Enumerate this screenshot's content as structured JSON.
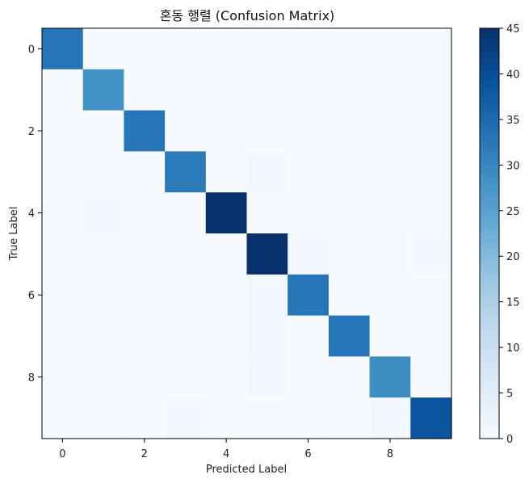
{
  "chart_data": {
    "type": "heatmap",
    "title": "혼동 행렬 (Confusion Matrix)",
    "xlabel": "Predicted Label",
    "ylabel": "True Label",
    "x_ticks": [
      0,
      2,
      4,
      6,
      8
    ],
    "y_ticks": [
      0,
      2,
      4,
      6,
      8
    ],
    "colorbar": {
      "min": 0,
      "max": 45,
      "ticks": [
        0,
        5,
        10,
        15,
        20,
        25,
        30,
        35,
        40,
        45
      ],
      "colormap": "Blues"
    },
    "matrix": [
      [
        33,
        0,
        0,
        0,
        0,
        0,
        0,
        0,
        0,
        0
      ],
      [
        0,
        28,
        0,
        0,
        0,
        0,
        0,
        0,
        0,
        0
      ],
      [
        0,
        0,
        33,
        0,
        0,
        0,
        0,
        0,
        0,
        0
      ],
      [
        0,
        0,
        0,
        32,
        0,
        1,
        0,
        0,
        0,
        0
      ],
      [
        0,
        1,
        0,
        0,
        46,
        0,
        0,
        0,
        0,
        0
      ],
      [
        0,
        0,
        0,
        0,
        0,
        45,
        1,
        0,
        0,
        1
      ],
      [
        0,
        0,
        0,
        0,
        0,
        1,
        33,
        0,
        0,
        0
      ],
      [
        0,
        0,
        0,
        0,
        0,
        1,
        0,
        33,
        0,
        0
      ],
      [
        0,
        0,
        0,
        0,
        0,
        1,
        0,
        0,
        29,
        0
      ],
      [
        0,
        0,
        0,
        1,
        0,
        0,
        0,
        0,
        1,
        39
      ]
    ]
  }
}
